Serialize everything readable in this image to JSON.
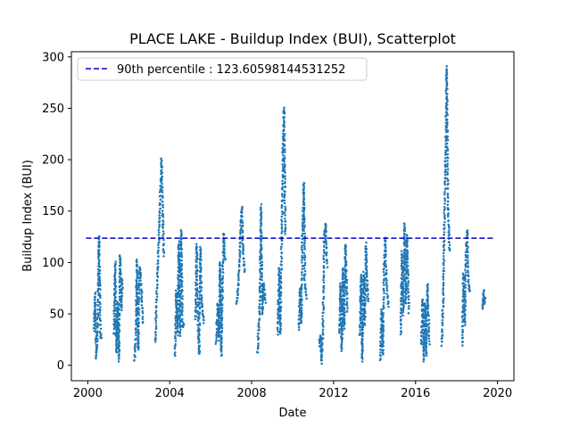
{
  "chart_data": {
    "type": "scatter",
    "title": "PLACE LAKE - Buildup Index (BUI), Scatterplot",
    "xlabel": "Date",
    "ylabel": "Buildup Index (BUI)",
    "xlim": [
      1999.2,
      2020.8
    ],
    "ylim": [
      -15,
      305
    ],
    "x_ticks": [
      2000,
      2004,
      2008,
      2012,
      2016,
      2020
    ],
    "y_ticks": [
      0,
      50,
      100,
      150,
      200,
      250,
      300
    ],
    "grid": false,
    "legend_position": "top-left",
    "colors": {
      "points": "#1f77b4",
      "threshold": "#0000cc"
    },
    "reference_line": {
      "label": "90th percentile : 123.60598144531252",
      "value": 123.60598144531252,
      "x_range": [
        2000,
        2020
      ]
    },
    "series": [
      {
        "seasons": [
          {
            "year": 2000,
            "start": [
              2000.3,
              35
            ],
            "peaks": [
              [
                2000.36,
                70
              ],
              [
                2000.42,
                8
              ],
              [
                2000.5,
                55
              ],
              [
                2000.55,
                125
              ],
              [
                2000.62,
                30
              ]
            ],
            "end": [
              2000.68,
              25
            ]
          },
          {
            "year": 2001,
            "start": [
              2001.28,
              30
            ],
            "peaks": [
              [
                2001.34,
                100
              ],
              [
                2001.4,
                12
              ],
              [
                2001.46,
                60
              ],
              [
                2001.52,
                5
              ],
              [
                2001.58,
                108
              ],
              [
                2001.64,
                55
              ]
            ],
            "end": [
              2001.7,
              85
            ]
          },
          {
            "year": 2002,
            "start": [
              2002.28,
              5
            ],
            "peaks": [
              [
                2002.34,
                25
              ],
              [
                2002.4,
                102
              ],
              [
                2002.46,
                15
              ],
              [
                2002.52,
                95
              ],
              [
                2002.58,
                88
              ]
            ],
            "end": [
              2002.7,
              40
            ]
          },
          {
            "year": 2003,
            "start": [
              2003.3,
              22
            ],
            "peaks": [
              [
                2003.38,
                80
              ],
              [
                2003.44,
                105
              ],
              [
                2003.52,
                155
              ],
              [
                2003.6,
                200
              ],
              [
                2003.66,
                145
              ]
            ],
            "end": [
              2003.72,
              105
            ]
          },
          {
            "year": 2004,
            "start": [
              2004.26,
              10
            ],
            "peaks": [
              [
                2004.32,
                72
              ],
              [
                2004.38,
                30
              ],
              [
                2004.44,
                120
              ],
              [
                2004.5,
                30
              ],
              [
                2004.56,
                132
              ],
              [
                2004.62,
                38
              ]
            ],
            "end": [
              2004.7,
              40
            ]
          },
          {
            "year": 2005,
            "start": [
              2005.26,
              45
            ],
            "peaks": [
              [
                2005.32,
                118
              ],
              [
                2005.38,
                40
              ],
              [
                2005.44,
                10
              ],
              [
                2005.5,
                115
              ],
              [
                2005.56,
                60
              ]
            ],
            "end": [
              2005.68,
              40
            ]
          },
          {
            "year": 2006,
            "start": [
              2006.26,
              20
            ],
            "peaks": [
              [
                2006.34,
                60
              ],
              [
                2006.4,
                25
              ],
              [
                2006.46,
                100
              ],
              [
                2006.52,
                10
              ],
              [
                2006.58,
                80
              ],
              [
                2006.64,
                128
              ]
            ],
            "end": [
              2006.7,
              100
            ]
          },
          {
            "year": 2007,
            "start": [
              2007.28,
              60
            ],
            "peaks": [
              [
                2007.36,
                80
              ],
              [
                2007.44,
                120
              ],
              [
                2007.52,
                155
              ],
              [
                2007.58,
                110
              ]
            ],
            "end": [
              2007.68,
              90
            ]
          },
          {
            "year": 2008,
            "start": [
              2008.28,
              12
            ],
            "peaks": [
              [
                2008.34,
                35
              ],
              [
                2008.4,
                60
              ],
              [
                2008.46,
                155
              ],
              [
                2008.52,
                50
              ],
              [
                2008.58,
                80
              ]
            ],
            "end": [
              2008.68,
              60
            ]
          },
          {
            "year": 2009,
            "start": [
              2009.28,
              30
            ],
            "peaks": [
              [
                2009.34,
                95
              ],
              [
                2009.4,
                30
              ],
              [
                2009.46,
                120
              ],
              [
                2009.52,
                200
              ],
              [
                2009.58,
                250
              ]
            ],
            "end": [
              2009.64,
              125
            ]
          },
          {
            "year": 2010,
            "start": [
              2010.3,
              35
            ],
            "peaks": [
              [
                2010.36,
                75
              ],
              [
                2010.42,
                40
              ],
              [
                2010.48,
                125
              ],
              [
                2010.54,
                178
              ],
              [
                2010.6,
                80
              ]
            ],
            "end": [
              2010.68,
              65
            ]
          },
          {
            "year": 2011,
            "start": [
              2011.3,
              20
            ],
            "peaks": [
              [
                2011.36,
                30
              ],
              [
                2011.42,
                3
              ],
              [
                2011.48,
                40
              ],
              [
                2011.54,
                120
              ],
              [
                2011.6,
                138
              ]
            ],
            "end": [
              2011.68,
              95
            ]
          },
          {
            "year": 2012,
            "start": [
              2012.28,
              30
            ],
            "peaks": [
              [
                2012.34,
                80
              ],
              [
                2012.4,
                15
              ],
              [
                2012.46,
                95
              ],
              [
                2012.52,
                35
              ],
              [
                2012.58,
                118
              ]
            ],
            "end": [
              2012.68,
              50
            ]
          },
          {
            "year": 2013,
            "start": [
              2013.28,
              30
            ],
            "peaks": [
              [
                2013.34,
                88
              ],
              [
                2013.4,
                5
              ],
              [
                2013.46,
                90
              ],
              [
                2013.52,
                40
              ],
              [
                2013.58,
                118
              ]
            ],
            "end": [
              2013.68,
              60
            ]
          },
          {
            "year": 2014,
            "start": [
              2014.28,
              5
            ],
            "peaks": [
              [
                2014.34,
                55
              ],
              [
                2014.4,
                10
              ],
              [
                2014.46,
                95
              ],
              [
                2014.52,
                125
              ],
              [
                2014.58,
                80
              ]
            ],
            "end": [
              2014.68,
              55
            ]
          },
          {
            "year": 2015,
            "start": [
              2015.28,
              30
            ],
            "peaks": [
              [
                2015.34,
                110
              ],
              [
                2015.4,
                50
              ],
              [
                2015.46,
                138
              ],
              [
                2015.52,
                60
              ],
              [
                2015.58,
                128
              ]
            ],
            "end": [
              2015.68,
              50
            ]
          },
          {
            "year": 2016,
            "start": [
              2016.28,
              20
            ],
            "peaks": [
              [
                2016.34,
                65
              ],
              [
                2016.4,
                5
              ],
              [
                2016.46,
                60
              ],
              [
                2016.52,
                10
              ],
              [
                2016.58,
                80
              ]
            ],
            "end": [
              2016.68,
              20
            ]
          },
          {
            "year": 2017,
            "start": [
              2017.28,
              20
            ],
            "peaks": [
              [
                2017.34,
                60
              ],
              [
                2017.4,
                130
              ],
              [
                2017.46,
                200
              ],
              [
                2017.52,
                290
              ],
              [
                2017.58,
                160
              ]
            ],
            "end": [
              2017.66,
              110
            ]
          },
          {
            "year": 2018,
            "start": [
              2018.28,
              20
            ],
            "peaks": [
              [
                2018.34,
                90
              ],
              [
                2018.4,
                40
              ],
              [
                2018.46,
                110
              ],
              [
                2018.52,
                130
              ],
              [
                2018.58,
                80
              ]
            ],
            "end": [
              2018.66,
              70
            ]
          },
          {
            "year": 2019,
            "start": [
              2019.28,
              55
            ],
            "peaks": [
              [
                2019.32,
                72
              ],
              [
                2019.36,
                60
              ]
            ],
            "end": [
              2019.4,
              65
            ]
          }
        ]
      }
    ]
  }
}
